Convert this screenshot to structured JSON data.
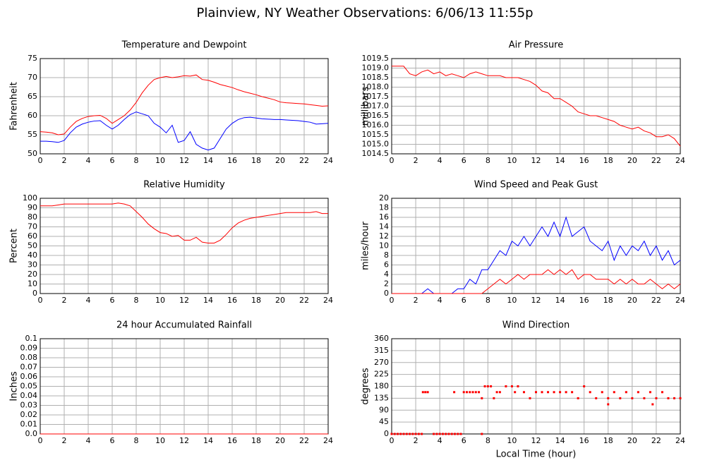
{
  "title": "Plainview, NY Weather Observations: 6/06/13 11:55p",
  "chart_data": [
    {
      "type": "line",
      "title": "Temperature and Dewpoint",
      "ylabel": "Fahrenheit",
      "grid": true,
      "xlim": [
        0,
        24
      ],
      "xticks": [
        0,
        2,
        4,
        6,
        8,
        10,
        12,
        14,
        16,
        18,
        20,
        22,
        24
      ],
      "ylim": [
        50,
        75
      ],
      "yticks": [
        50,
        55,
        60,
        65,
        70,
        75
      ],
      "x": [
        0,
        0.5,
        1,
        1.5,
        2,
        2.5,
        3,
        3.5,
        4,
        4.5,
        5,
        5.5,
        6,
        6.5,
        7,
        7.5,
        8,
        8.5,
        9,
        9.5,
        10,
        10.5,
        11,
        11.5,
        12,
        12.5,
        13,
        13.5,
        14,
        14.5,
        15,
        15.5,
        16,
        16.5,
        17,
        17.5,
        18,
        18.5,
        19,
        19.5,
        20,
        20.5,
        21,
        21.5,
        22,
        22.5,
        23,
        23.5,
        24
      ],
      "series": [
        {
          "color": "#ff0000",
          "values": [
            55.8,
            55.7,
            55.5,
            55,
            55.2,
            57,
            58.5,
            59.3,
            59.8,
            60,
            60.1,
            59.3,
            58,
            59,
            60,
            61.5,
            63.5,
            66,
            68,
            69.5,
            70,
            70.3,
            70,
            70.2,
            70.5,
            70.4,
            70.7,
            69.5,
            69.3,
            68.8,
            68.2,
            67.8,
            67.4,
            66.8,
            66.3,
            65.9,
            65.5,
            65,
            64.6,
            64.2,
            63.6,
            63.4,
            63.3,
            63.2,
            63.1,
            62.9,
            62.7,
            62.5,
            62.6
          ]
        },
        {
          "color": "#0000ff",
          "values": [
            53.3,
            53.3,
            53.2,
            53,
            53.5,
            55.5,
            57,
            57.8,
            58.3,
            58.6,
            58.7,
            57.5,
            56.5,
            57.5,
            59,
            60.3,
            61,
            60.5,
            60,
            58,
            57,
            55.5,
            57.5,
            53,
            53.5,
            55.8,
            52.5,
            51.5,
            51,
            51.5,
            54,
            56.5,
            58,
            59,
            59.5,
            59.6,
            59.4,
            59.2,
            59.1,
            59,
            59,
            58.9,
            58.8,
            58.7,
            58.5,
            58.3,
            57.8,
            57.9,
            58
          ]
        }
      ]
    },
    {
      "type": "line",
      "title": "Air Pressure",
      "ylabel": "millibars",
      "grid": true,
      "xlim": [
        0,
        24
      ],
      "xticks": [
        0,
        2,
        4,
        6,
        8,
        10,
        12,
        14,
        16,
        18,
        20,
        22,
        24
      ],
      "ylim": [
        1014.5,
        1019.5
      ],
      "yticks": [
        1014.5,
        {
          "value": 1015,
          "label": "1015.0"
        },
        1015.5,
        {
          "value": 1016,
          "label": "1016.0"
        },
        1016.5,
        {
          "value": 1017,
          "label": "1017.0"
        },
        1017.5,
        {
          "value": 1018,
          "label": "1018.0"
        },
        1018.5,
        {
          "value": 1019,
          "label": "1019.0"
        },
        1019.5
      ],
      "x": [
        0,
        0.5,
        1,
        1.5,
        2,
        2.5,
        3,
        3.5,
        4,
        4.5,
        5,
        5.5,
        6,
        6.5,
        7,
        7.5,
        8,
        8.5,
        9,
        9.5,
        10,
        10.5,
        11,
        11.5,
        12,
        12.5,
        13,
        13.5,
        14,
        14.5,
        15,
        15.5,
        16,
        16.5,
        17,
        17.5,
        18,
        18.5,
        19,
        19.5,
        20,
        20.5,
        21,
        21.5,
        22,
        22.5,
        23,
        23.5,
        24
      ],
      "series": [
        {
          "color": "#ff0000",
          "values": [
            1019.1,
            1019.1,
            1019.1,
            1018.7,
            1018.6,
            1018.8,
            1018.9,
            1018.7,
            1018.8,
            1018.6,
            1018.7,
            1018.6,
            1018.5,
            1018.7,
            1018.8,
            1018.7,
            1018.6,
            1018.6,
            1018.6,
            1018.5,
            1018.5,
            1018.5,
            1018.4,
            1018.3,
            1018.1,
            1017.8,
            1017.7,
            1017.4,
            1017.4,
            1017.2,
            1017,
            1016.7,
            1016.6,
            1016.5,
            1016.5,
            1016.4,
            1016.3,
            1016.2,
            1016,
            1015.9,
            1015.8,
            1015.9,
            1015.7,
            1015.6,
            1015.4,
            1015.4,
            1015.5,
            1015.3,
            1014.9
          ]
        }
      ]
    },
    {
      "type": "line",
      "title": "Relative Humidity",
      "ylabel": "Percent",
      "grid": true,
      "xlim": [
        0,
        24
      ],
      "xticks": [
        0,
        2,
        4,
        6,
        8,
        10,
        12,
        14,
        16,
        18,
        20,
        22,
        24
      ],
      "ylim": [
        0,
        100
      ],
      "yticks": [
        0,
        10,
        20,
        30,
        40,
        50,
        60,
        70,
        80,
        90,
        100
      ],
      "x": [
        0,
        0.5,
        1,
        1.5,
        2,
        2.5,
        3,
        3.5,
        4,
        4.5,
        5,
        5.5,
        6,
        6.5,
        7,
        7.5,
        8,
        8.5,
        9,
        9.5,
        10,
        10.5,
        11,
        11.5,
        12,
        12.5,
        13,
        13.5,
        14,
        14.5,
        15,
        15.5,
        16,
        16.5,
        17,
        17.5,
        18,
        18.5,
        19,
        19.5,
        20,
        20.5,
        21,
        21.5,
        22,
        22.5,
        23,
        23.5,
        24
      ],
      "series": [
        {
          "color": "#ff0000",
          "values": [
            92,
            92,
            92,
            93,
            94,
            94,
            94,
            94,
            94,
            94,
            94,
            94,
            94,
            95,
            94,
            92,
            86,
            80,
            73,
            68,
            64,
            63,
            60,
            61,
            56,
            56,
            59,
            54,
            53,
            53,
            56,
            62,
            69,
            74,
            77,
            79,
            80,
            81,
            82,
            83,
            84,
            85,
            85,
            85,
            85,
            85,
            86,
            84,
            84
          ]
        }
      ]
    },
    {
      "type": "line",
      "title": "Wind Speed and Peak Gust",
      "ylabel": "miles/hour",
      "grid": true,
      "xlim": [
        0,
        24
      ],
      "xticks": [
        0,
        2,
        4,
        6,
        8,
        10,
        12,
        14,
        16,
        18,
        20,
        22,
        24
      ],
      "ylim": [
        0,
        20
      ],
      "yticks": [
        0,
        2,
        4,
        6,
        8,
        10,
        12,
        14,
        16,
        18,
        20
      ],
      "x": [
        0,
        0.5,
        1,
        1.5,
        2,
        2.5,
        3,
        3.5,
        4,
        4.5,
        5,
        5.5,
        6,
        6.5,
        7,
        7.5,
        8,
        8.5,
        9,
        9.5,
        10,
        10.5,
        11,
        11.5,
        12,
        12.5,
        13,
        13.5,
        14,
        14.5,
        15,
        15.5,
        16,
        16.5,
        17,
        17.5,
        18,
        18.5,
        19,
        19.5,
        20,
        20.5,
        21,
        21.5,
        22,
        22.5,
        23,
        23.5,
        24
      ],
      "series": [
        {
          "color": "#0000ff",
          "values": [
            0,
            0,
            0,
            0,
            0,
            0,
            1,
            0,
            0,
            0,
            0,
            1,
            1,
            3,
            2,
            5,
            5,
            7,
            9,
            8,
            11,
            10,
            12,
            10,
            12,
            14,
            12,
            15,
            12,
            16,
            12,
            13,
            14,
            11,
            10,
            9,
            11,
            7,
            10,
            8,
            10,
            9,
            11,
            8,
            10,
            7,
            9,
            6,
            7
          ]
        },
        {
          "color": "#ff0000",
          "values": [
            0,
            0,
            0,
            0,
            0,
            0,
            0,
            0,
            0,
            0,
            0,
            0,
            0,
            0,
            0,
            0,
            1,
            2,
            3,
            2,
            3,
            4,
            3,
            4,
            4,
            4,
            5,
            4,
            5,
            4,
            5,
            3,
            4,
            4,
            3,
            3,
            3,
            2,
            3,
            2,
            3,
            2,
            2,
            3,
            2,
            1,
            2,
            1,
            2
          ]
        }
      ]
    },
    {
      "type": "line",
      "title": "24 hour Accumulated Rainfall",
      "ylabel": "Inches",
      "grid": true,
      "xlim": [
        0,
        24
      ],
      "xticks": [
        0,
        2,
        4,
        6,
        8,
        10,
        12,
        14,
        16,
        18,
        20,
        22,
        24
      ],
      "ylim": [
        0,
        0.1
      ],
      "yticks": [
        {
          "value": 0,
          "label": "0.0"
        },
        0.01,
        0.02,
        0.03,
        0.04,
        0.05,
        0.06,
        0.07,
        0.08,
        0.09,
        0.1
      ],
      "x": [
        0,
        24
      ],
      "series": [
        {
          "color": "#ff0000",
          "values": [
            0,
            0
          ]
        }
      ]
    },
    {
      "type": "scatter",
      "title": "Wind Direction",
      "ylabel": "degrees",
      "xlabel": "Local Time (hour)",
      "grid": true,
      "xlim": [
        0,
        24
      ],
      "xticks": [
        0,
        2,
        4,
        6,
        8,
        10,
        12,
        14,
        16,
        18,
        20,
        22,
        24
      ],
      "ylim": [
        0,
        360
      ],
      "yticks": [
        0,
        45,
        90,
        135,
        180,
        225,
        270,
        315,
        360
      ],
      "x": [
        0,
        0.25,
        0.5,
        0.75,
        1,
        1.25,
        1.5,
        1.75,
        2,
        2.25,
        2.5,
        2.6,
        2.8,
        3,
        3.5,
        3.75,
        4,
        4.25,
        4.5,
        4.75,
        5,
        5.2,
        5.25,
        5.5,
        5.75,
        6,
        6.25,
        6.5,
        6.75,
        7,
        7.25,
        7.5,
        7.5,
        7.75,
        8,
        8.25,
        8.5,
        8.75,
        9,
        9.5,
        10,
        10.25,
        10.5,
        11,
        11.5,
        12,
        12.5,
        13,
        13.5,
        14,
        14.5,
        15,
        15.5,
        16,
        16.5,
        17,
        17.5,
        18,
        18,
        18.5,
        19,
        19.5,
        20,
        20.5,
        21,
        21.5,
        21.7,
        22,
        22.5,
        23,
        23.5,
        24
      ],
      "series": [
        {
          "color": "#ff0000",
          "values": [
            0,
            0,
            0,
            0,
            0,
            0,
            0,
            0,
            0,
            0,
            0,
            158,
            158,
            158,
            0,
            0,
            0,
            0,
            0,
            0,
            0,
            158,
            0,
            0,
            0,
            158,
            158,
            158,
            158,
            158,
            158,
            135,
            0,
            180,
            180,
            180,
            135,
            158,
            158,
            180,
            180,
            158,
            180,
            158,
            135,
            158,
            158,
            158,
            158,
            158,
            158,
            158,
            135,
            180,
            158,
            135,
            158,
            112,
            135,
            158,
            135,
            158,
            135,
            158,
            135,
            158,
            112,
            135,
            158,
            135,
            135,
            135
          ]
        }
      ]
    }
  ]
}
